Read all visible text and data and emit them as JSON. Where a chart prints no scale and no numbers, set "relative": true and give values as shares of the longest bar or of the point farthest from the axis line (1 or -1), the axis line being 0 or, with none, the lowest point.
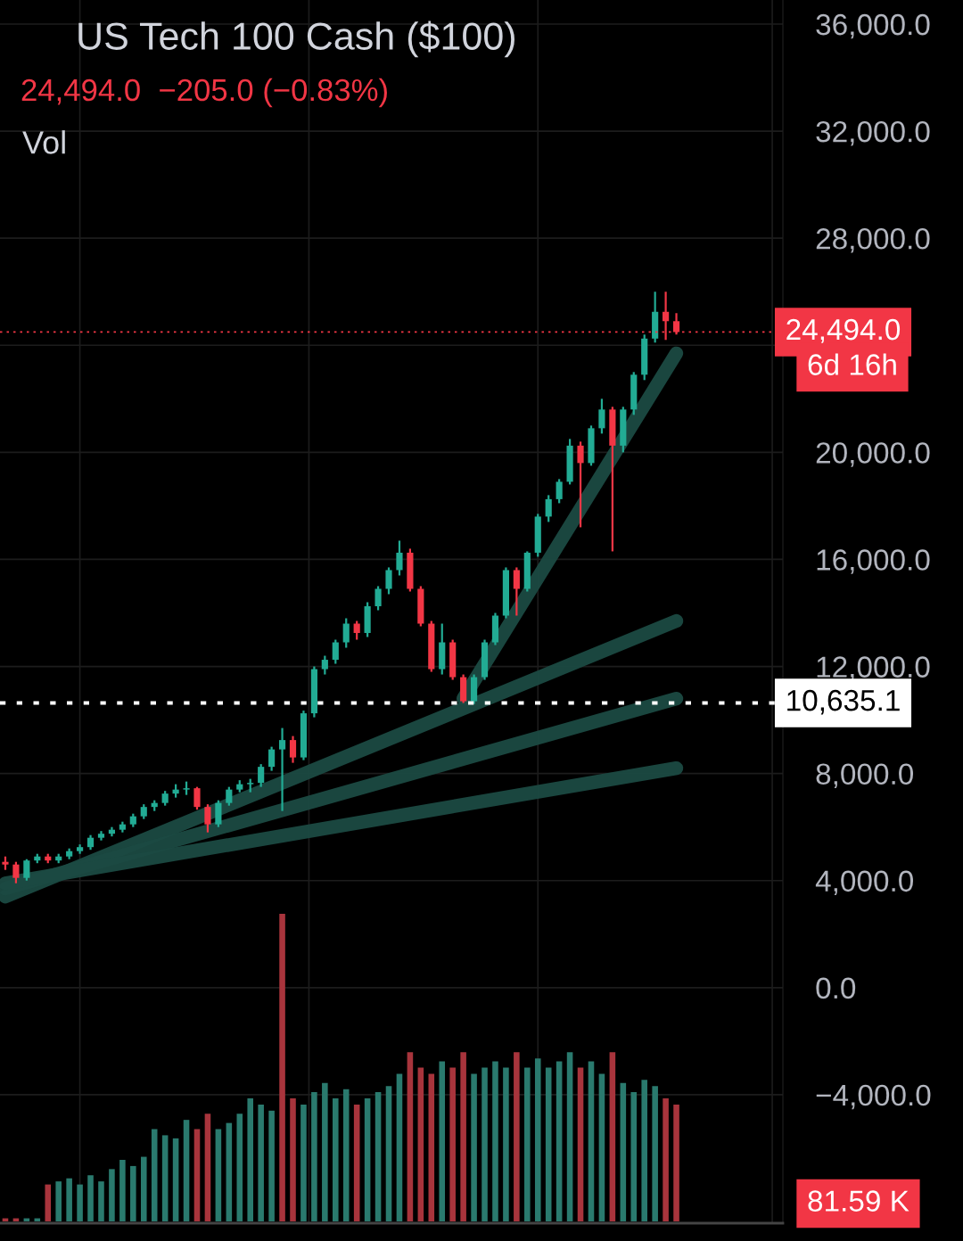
{
  "chart_data": [
    {
      "type": "candlestick",
      "title": "US Tech 100 Cash ($100)",
      "subtitle": "24,494.0  −205.0 (−0.83%)",
      "annotations": [
        "Vol",
        "6d 16h"
      ],
      "categories": [
        null,
        null,
        null,
        null,
        null,
        null,
        null,
        null,
        null,
        null,
        null,
        null,
        null,
        null,
        null,
        null,
        null,
        null,
        null,
        null,
        null,
        null,
        null,
        null,
        null,
        null,
        null,
        null,
        null,
        null,
        null,
        null,
        null,
        null,
        null,
        null,
        null,
        null,
        null,
        null,
        null,
        null,
        null,
        null,
        null,
        null,
        null,
        null,
        null,
        null,
        null,
        null,
        null,
        null,
        null,
        null,
        null,
        null,
        null,
        null,
        null,
        null,
        null,
        null
      ],
      "ohlc": [
        [
          4700,
          4900,
          4400,
          4600
        ],
        [
          4600,
          4700,
          3900,
          4100
        ],
        [
          4100,
          4800,
          4000,
          4750
        ],
        [
          4750,
          5000,
          4650,
          4900
        ],
        [
          4900,
          5000,
          4650,
          4750
        ],
        [
          4750,
          5000,
          4650,
          4900
        ],
        [
          4900,
          5200,
          4800,
          5100
        ],
        [
          5100,
          5350,
          5000,
          5250
        ],
        [
          5250,
          5700,
          5150,
          5600
        ],
        [
          5600,
          5850,
          5500,
          5750
        ],
        [
          5750,
          6000,
          5650,
          5900
        ],
        [
          5900,
          6200,
          5800,
          6100
        ],
        [
          6100,
          6500,
          6000,
          6400
        ],
        [
          6400,
          6850,
          6300,
          6750
        ],
        [
          6750,
          7000,
          6600,
          6900
        ],
        [
          6900,
          7350,
          6800,
          7250
        ],
        [
          7250,
          7600,
          7100,
          7400
        ],
        [
          7400,
          7700,
          7200,
          7450
        ],
        [
          7450,
          7500,
          6650,
          6750
        ],
        [
          6750,
          6850,
          5800,
          6100
        ],
        [
          6100,
          7000,
          6000,
          6900
        ],
        [
          6900,
          7500,
          6800,
          7400
        ],
        [
          7400,
          7750,
          7300,
          7600
        ],
        [
          7600,
          7800,
          7300,
          7650
        ],
        [
          7650,
          8350,
          7500,
          8250
        ],
        [
          8250,
          9000,
          8100,
          8900
        ],
        [
          8900,
          9700,
          6600,
          9250
        ],
        [
          9250,
          9400,
          8400,
          8600
        ],
        [
          8600,
          10350,
          8500,
          10250
        ],
        [
          10250,
          12000,
          10100,
          11900
        ],
        [
          11900,
          12400,
          11700,
          12250
        ],
        [
          12250,
          13000,
          12100,
          12900
        ],
        [
          12900,
          13800,
          12700,
          13600
        ],
        [
          13600,
          13700,
          13000,
          13250
        ],
        [
          13250,
          14400,
          13100,
          14250
        ],
        [
          14250,
          15000,
          14100,
          14900
        ],
        [
          14900,
          15700,
          14700,
          15600
        ],
        [
          15600,
          16700,
          15400,
          16250
        ],
        [
          16250,
          16400,
          14800,
          14900
        ],
        [
          14900,
          15000,
          13500,
          13600
        ],
        [
          13600,
          13700,
          11800,
          11900
        ],
        [
          11900,
          13600,
          11700,
          12900
        ],
        [
          12900,
          13000,
          11500,
          11600
        ],
        [
          11600,
          11700,
          10635,
          10700
        ],
        [
          10700,
          11700,
          10600,
          11600
        ],
        [
          11600,
          13000,
          11500,
          12900
        ],
        [
          12900,
          14000,
          12800,
          13900
        ],
        [
          13900,
          15700,
          13800,
          15600
        ],
        [
          15600,
          15700,
          13900,
          14900
        ],
        [
          14900,
          16300,
          14800,
          16250
        ],
        [
          16250,
          17700,
          16100,
          17600
        ],
        [
          17600,
          18400,
          17400,
          18250
        ],
        [
          18250,
          19000,
          18100,
          18900
        ],
        [
          18900,
          20500,
          18800,
          20250
        ],
        [
          20250,
          20400,
          17200,
          19600
        ],
        [
          19600,
          21000,
          19500,
          20900
        ],
        [
          20900,
          22000,
          20700,
          21600
        ],
        [
          21600,
          21700,
          16300,
          20250
        ],
        [
          20250,
          21700,
          20000,
          21600
        ],
        [
          21600,
          23000,
          21400,
          22900
        ],
        [
          22900,
          24400,
          22700,
          24250
        ],
        [
          24250,
          26000,
          24100,
          25250
        ],
        [
          25250,
          26000,
          24200,
          24900
        ],
        [
          24900,
          25200,
          24400,
          24494
        ]
      ],
      "colors": [
        "#f23645",
        "#f23645",
        "#22ab94",
        "#22ab94",
        "#f23645",
        "#22ab94",
        "#22ab94",
        "#22ab94",
        "#22ab94",
        "#22ab94",
        "#22ab94",
        "#22ab94",
        "#22ab94",
        "#22ab94",
        "#22ab94",
        "#22ab94",
        "#22ab94",
        "#22ab94",
        "#f23645",
        "#f23645",
        "#22ab94",
        "#22ab94",
        "#22ab94",
        "#22ab94",
        "#22ab94",
        "#22ab94",
        "#22ab94",
        "#f23645",
        "#22ab94",
        "#22ab94",
        "#22ab94",
        "#22ab94",
        "#22ab94",
        "#f23645",
        "#22ab94",
        "#22ab94",
        "#22ab94",
        "#22ab94",
        "#f23645",
        "#f23645",
        "#f23645",
        "#22ab94",
        "#f23645",
        "#f23645",
        "#22ab94",
        "#22ab94",
        "#22ab94",
        "#22ab94",
        "#f23645",
        "#22ab94",
        "#22ab94",
        "#22ab94",
        "#22ab94",
        "#22ab94",
        "#f23645",
        "#22ab94",
        "#22ab94",
        "#f23645",
        "#22ab94",
        "#22ab94",
        "#22ab94",
        "#22ab94",
        "#f23645",
        "#f23645"
      ],
      "series": [
        {
          "type": "line",
          "color": "#1b4a42",
          "values": [
            null,
            null,
            null,
            null,
            null,
            null,
            null,
            null,
            null,
            null,
            null,
            null,
            null,
            null,
            null,
            null,
            null,
            null,
            null,
            null,
            null,
            null,
            null,
            null,
            null,
            null,
            null,
            null,
            null,
            null,
            null,
            null,
            null,
            null,
            null,
            null,
            null,
            null,
            null,
            null,
            null,
            null,
            null,
            10800,
            null,
            null,
            null,
            null,
            null,
            null,
            null,
            null,
            null,
            null,
            null,
            null,
            null,
            null,
            null,
            null,
            null,
            null,
            null,
            23700
          ]
        },
        {
          "type": "line",
          "color": "#1b4a42",
          "values": [
            3400,
            null,
            null,
            null,
            null,
            null,
            null,
            null,
            null,
            null,
            null,
            null,
            null,
            null,
            null,
            null,
            null,
            null,
            null,
            null,
            null,
            null,
            null,
            null,
            null,
            null,
            null,
            null,
            null,
            null,
            null,
            null,
            null,
            null,
            null,
            null,
            null,
            null,
            null,
            null,
            null,
            null,
            null,
            null,
            null,
            null,
            null,
            null,
            null,
            null,
            null,
            null,
            null,
            null,
            null,
            null,
            null,
            null,
            null,
            null,
            null,
            null,
            null,
            13700
          ]
        },
        {
          "type": "line",
          "color": "#1b4a42",
          "values": [
            3700,
            null,
            null,
            null,
            null,
            null,
            null,
            null,
            null,
            null,
            null,
            null,
            null,
            null,
            null,
            null,
            null,
            null,
            null,
            null,
            null,
            null,
            null,
            null,
            null,
            null,
            null,
            null,
            null,
            null,
            null,
            null,
            null,
            null,
            null,
            null,
            null,
            null,
            null,
            null,
            null,
            null,
            null,
            null,
            null,
            null,
            null,
            null,
            null,
            null,
            null,
            null,
            null,
            null,
            null,
            null,
            null,
            null,
            null,
            null,
            null,
            null,
            null,
            10800
          ]
        },
        {
          "type": "line",
          "color": "#1b4a42",
          "values": [
            3900,
            null,
            null,
            null,
            null,
            null,
            null,
            null,
            null,
            null,
            null,
            null,
            null,
            null,
            null,
            null,
            null,
            null,
            null,
            null,
            null,
            null,
            null,
            null,
            null,
            null,
            null,
            null,
            null,
            null,
            null,
            null,
            null,
            null,
            null,
            null,
            null,
            null,
            null,
            null,
            null,
            null,
            null,
            null,
            null,
            null,
            null,
            null,
            null,
            null,
            null,
            null,
            null,
            null,
            null,
            null,
            null,
            null,
            null,
            null,
            null,
            null,
            null,
            8200
          ]
        }
      ],
      "ylim": [
        -8800,
        36900
      ],
      "yticks": [
        {
          "value": 36000,
          "label": "36,000.0"
        },
        {
          "value": 32000,
          "label": "32,000.0"
        },
        {
          "value": 28000,
          "label": "28,000.0"
        },
        {
          "value": 24000,
          "label": null
        },
        {
          "value": 20000,
          "label": "20,000.0"
        },
        {
          "value": 16000,
          "label": "16,000.0"
        },
        {
          "value": 12000,
          "label": "12,000.0"
        },
        {
          "value": 8000,
          "label": "8,000.0"
        },
        {
          "value": 4000,
          "label": "4,000.0"
        },
        {
          "value": 0,
          "label": "0.0"
        },
        {
          "value": -4000,
          "label": "−4,000.0"
        }
      ],
      "tick_labels": "y",
      "grid": true,
      "ref_lines": [
        {
          "axis": "y",
          "value": 10635.1,
          "label": "10,635.1",
          "color": "#ffffff",
          "line_style": "dotted"
        },
        {
          "axis": "y",
          "value": 24494.0,
          "label": "24,494.0",
          "color": "#f23645",
          "line_style": "dotted"
        }
      ]
    },
    {
      "type": "bar",
      "relative": true,
      "categories": [
        null,
        null,
        null,
        null,
        null,
        null,
        null,
        null,
        null,
        null,
        null,
        null,
        null,
        null,
        null,
        null,
        null,
        null,
        null,
        null,
        null,
        null,
        null,
        null,
        null,
        null,
        null,
        null,
        null,
        null,
        null,
        null,
        null,
        null,
        null,
        null,
        null,
        null,
        null,
        null,
        null,
        null,
        null,
        null,
        null,
        null,
        null,
        null,
        null,
        null,
        null,
        null,
        null,
        null,
        null,
        null,
        null,
        null,
        null,
        null,
        null,
        null,
        null,
        null
      ],
      "values": [
        0.01,
        0.01,
        0.01,
        0.01,
        0.12,
        0.13,
        0.14,
        0.12,
        0.15,
        0.13,
        0.17,
        0.2,
        0.18,
        0.21,
        0.3,
        0.28,
        0.27,
        0.33,
        0.3,
        0.35,
        0.3,
        0.32,
        0.35,
        0.4,
        0.38,
        0.36,
        1.0,
        0.4,
        0.38,
        0.42,
        0.45,
        0.4,
        0.43,
        0.38,
        0.4,
        0.42,
        0.44,
        0.48,
        0.55,
        0.5,
        0.48,
        0.52,
        0.5,
        0.55,
        0.48,
        0.5,
        0.52,
        0.5,
        0.55,
        0.5,
        0.53,
        0.5,
        0.52,
        0.55,
        0.5,
        0.52,
        0.48,
        0.55,
        0.45,
        0.42,
        0.46,
        0.44,
        0.4,
        0.38
      ],
      "colors": [
        "#a8343c",
        "#a8343c",
        "#2a7a6e",
        "#2a7a6e",
        "#a8343c",
        "#2a7a6e",
        "#2a7a6e",
        "#2a7a6e",
        "#2a7a6e",
        "#2a7a6e",
        "#2a7a6e",
        "#2a7a6e",
        "#2a7a6e",
        "#2a7a6e",
        "#2a7a6e",
        "#2a7a6e",
        "#2a7a6e",
        "#2a7a6e",
        "#a8343c",
        "#a8343c",
        "#2a7a6e",
        "#2a7a6e",
        "#2a7a6e",
        "#2a7a6e",
        "#2a7a6e",
        "#2a7a6e",
        "#a8343c",
        "#a8343c",
        "#2a7a6e",
        "#2a7a6e",
        "#2a7a6e",
        "#2a7a6e",
        "#2a7a6e",
        "#a8343c",
        "#2a7a6e",
        "#2a7a6e",
        "#2a7a6e",
        "#2a7a6e",
        "#a8343c",
        "#a8343c",
        "#a8343c",
        "#2a7a6e",
        "#a8343c",
        "#a8343c",
        "#2a7a6e",
        "#2a7a6e",
        "#2a7a6e",
        "#2a7a6e",
        "#a8343c",
        "#2a7a6e",
        "#2a7a6e",
        "#2a7a6e",
        "#2a7a6e",
        "#2a7a6e",
        "#a8343c",
        "#2a7a6e",
        "#2a7a6e",
        "#a8343c",
        "#2a7a6e",
        "#2a7a6e",
        "#2a7a6e",
        "#2a7a6e",
        "#a8343c",
        "#a8343c"
      ],
      "annotations": [
        "81.59 K"
      ]
    }
  ]
}
